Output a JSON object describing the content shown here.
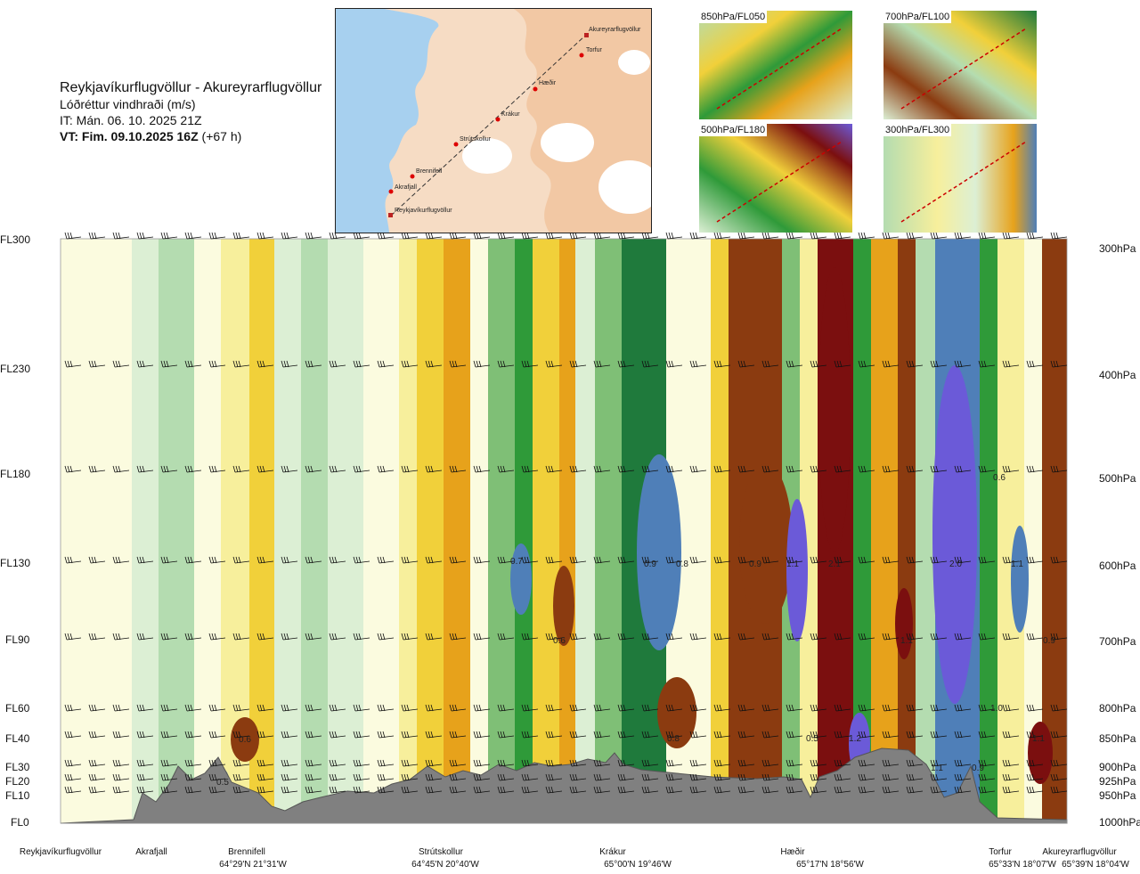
{
  "header": {
    "route": "Reykjavíkurflugvöllur - Akureyrarflugvöllur",
    "variable": "Lóðréttur vindhraði (m/s)",
    "it": "IT: Mán. 06. 10. 2025 21Z",
    "vt_bold": "VT: Fim. 09.10.2025 16Z",
    "vt_rest": " (+67 h)"
  },
  "map": {
    "points": [
      "Akureyrarflugvöllur",
      "Torfur",
      "Hæðir",
      "Krákur",
      "Strútskollur",
      "Brennifell",
      "Akrafjall",
      "Reykjavíkurflugvöllur"
    ]
  },
  "thumbs": [
    "850hPa/FL050",
    "700hPa/FL100",
    "500hPa/FL180",
    "300hPa/FL300"
  ],
  "chart_data": {
    "type": "heatmap",
    "title": "Reykjavíkurflugvöllur - Akureyrarflugvöllur",
    "quantity": "Lóðréttur vindhraði (m/s)",
    "flight_levels": [
      "FL300",
      "FL230",
      "FL180",
      "FL130",
      "FL90",
      "FL60",
      "FL40",
      "FL30",
      "FL20",
      "FL10",
      "FL0"
    ],
    "pressure_levels": [
      "300hPa",
      "400hPa",
      "500hPa",
      "600hPa",
      "700hPa",
      "800hPa",
      "850hPa",
      "900hPa",
      "925hPa",
      "950hPa",
      "1000hPa"
    ],
    "waypoints": [
      {
        "name": "Reykjavíkurflugvöllur",
        "coord": ""
      },
      {
        "name": "Akrafjall",
        "coord": ""
      },
      {
        "name": "Brennifell",
        "coord": "64°29'N 21°31'W"
      },
      {
        "name": "Strútskollur",
        "coord": "64°45'N 20°40'W"
      },
      {
        "name": "Krákur",
        "coord": "65°00'N 19°46'W"
      },
      {
        "name": "Hæðir",
        "coord": "65°17'N 18°56'W"
      },
      {
        "name": "Torfur",
        "coord": "65°33'N 18°07'W"
      },
      {
        "name": "Akureyrarflugvöllur",
        "coord": "65°39'N 18°04'W"
      }
    ],
    "value_labels": [
      "0.6",
      "0.7",
      "0.9",
      "0.8",
      "0.9",
      "1.1",
      "2.1",
      "2.0",
      "1.1",
      "0.6",
      "1.1",
      "0.9",
      "1.0",
      "0.8",
      "0.5",
      "1.2",
      "1.1",
      "0.6",
      "0.9",
      "1.1",
      "0.5"
    ],
    "color_scale": [
      "#7b0f0f",
      "#8b3b10",
      "#b8620f",
      "#e7a21b",
      "#f1d03a",
      "#f7ef9c",
      "#fbfbdf",
      "#dcefd4",
      "#b4dcb0",
      "#7fbf76",
      "#2f9a39",
      "#1f7a3c",
      "#4f7fb8",
      "#6b5ad8"
    ]
  }
}
